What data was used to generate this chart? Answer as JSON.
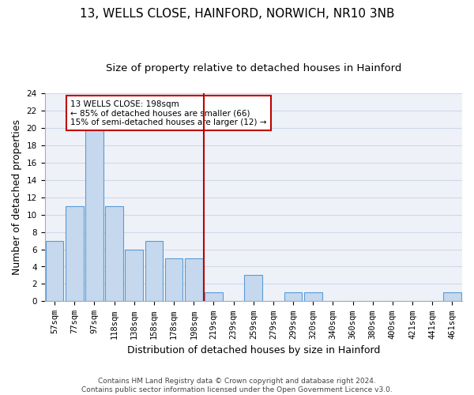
{
  "title1": "13, WELLS CLOSE, HAINFORD, NORWICH, NR10 3NB",
  "title2": "Size of property relative to detached houses in Hainford",
  "xlabel": "Distribution of detached houses by size in Hainford",
  "ylabel": "Number of detached properties",
  "categories": [
    "57sqm",
    "77sqm",
    "97sqm",
    "118sqm",
    "138sqm",
    "158sqm",
    "178sqm",
    "198sqm",
    "219sqm",
    "239sqm",
    "259sqm",
    "279sqm",
    "299sqm",
    "320sqm",
    "340sqm",
    "360sqm",
    "380sqm",
    "400sqm",
    "421sqm",
    "441sqm",
    "461sqm"
  ],
  "values": [
    7,
    11,
    20,
    11,
    6,
    7,
    5,
    5,
    1,
    0,
    3,
    0,
    1,
    1,
    0,
    0,
    0,
    0,
    0,
    0,
    1
  ],
  "bar_color": "#c5d8ed",
  "bar_edgecolor": "#5b9bd5",
  "vline_index": 7,
  "vline_color": "#c00000",
  "annotation_text": "13 WELLS CLOSE: 198sqm\n← 85% of detached houses are smaller (66)\n15% of semi-detached houses are larger (12) →",
  "annotation_box_color": "#c00000",
  "annotation_box_facecolor": "white",
  "ylim": [
    0,
    24
  ],
  "yticks": [
    0,
    2,
    4,
    6,
    8,
    10,
    12,
    14,
    16,
    18,
    20,
    22,
    24
  ],
  "grid_color": "#d0d8e8",
  "background_color": "#eef2f8",
  "footer_text": "Contains HM Land Registry data © Crown copyright and database right 2024.\nContains public sector information licensed under the Open Government Licence v3.0.",
  "title1_fontsize": 11,
  "title2_fontsize": 9.5,
  "xlabel_fontsize": 9,
  "ylabel_fontsize": 9,
  "tick_fontsize": 7.5,
  "footer_fontsize": 6.5
}
